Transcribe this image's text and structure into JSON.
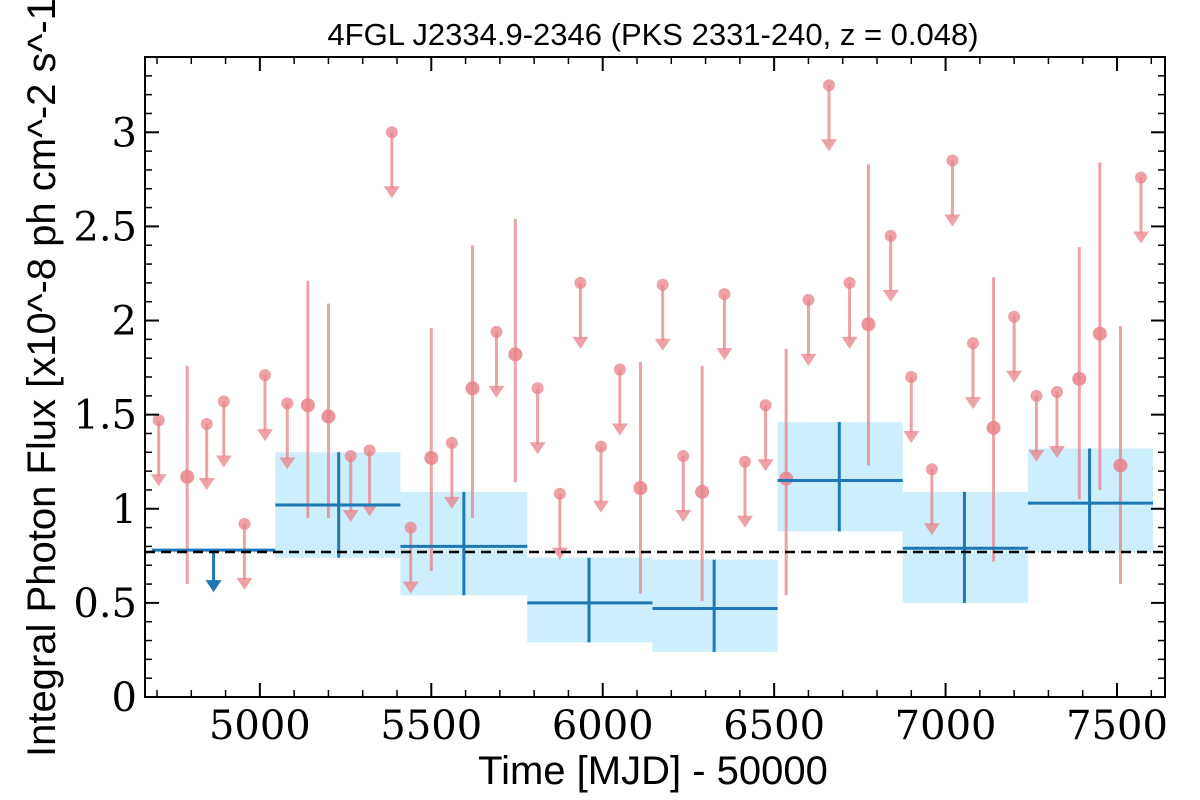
{
  "chart_data": {
    "type": "scatter",
    "title": "4FGL J2334.9-2346 (PKS 2331-240, z = 0.048)",
    "xlabel": "Time [MJD] - 50000",
    "ylabel": "Integral Photon Flux [x10^-8 ph cm^-2 s^-1]",
    "xlim": [
      4665,
      7640
    ],
    "ylim": [
      0,
      3.4
    ],
    "x_ticks": [
      5000,
      5500,
      6000,
      6500,
      7000,
      7500
    ],
    "y_ticks": [
      0,
      0.5,
      1,
      1.5,
      2,
      2.5,
      3
    ],
    "y_tick_labels": [
      "0",
      "0.5",
      "1",
      "1.5",
      "2",
      "2.5",
      "3"
    ],
    "grid": false,
    "reference_line": {
      "y": 0.77,
      "style": "dashed",
      "color": "#000000"
    },
    "series": [
      {
        "kind": "binned-fine",
        "color": "#e8838a",
        "detections": [
          {
            "x": 4788,
            "y": 1.17,
            "ylo": 0.6,
            "yhi": 1.76
          },
          {
            "x": 5140,
            "y": 1.55,
            "ylo": 0.95,
            "yhi": 2.21
          },
          {
            "x": 5200,
            "y": 1.49,
            "ylo": 0.95,
            "yhi": 2.09
          },
          {
            "x": 5500,
            "y": 1.27,
            "ylo": 0.67,
            "yhi": 1.96
          },
          {
            "x": 5620,
            "y": 1.64,
            "ylo": 0.95,
            "yhi": 2.4
          },
          {
            "x": 5745,
            "y": 1.82,
            "ylo": 1.14,
            "yhi": 2.54
          },
          {
            "x": 6110,
            "y": 1.11,
            "ylo": 0.55,
            "yhi": 1.78
          },
          {
            "x": 6290,
            "y": 1.09,
            "ylo": 0.51,
            "yhi": 1.76
          },
          {
            "x": 6535,
            "y": 1.16,
            "ylo": 0.54,
            "yhi": 1.85
          },
          {
            "x": 6775,
            "y": 1.98,
            "ylo": 1.23,
            "yhi": 2.83
          },
          {
            "x": 7140,
            "y": 1.43,
            "ylo": 0.72,
            "yhi": 2.23
          },
          {
            "x": 7390,
            "y": 1.69,
            "ylo": 1.05,
            "yhi": 2.39
          },
          {
            "x": 7450,
            "y": 1.93,
            "ylo": 1.1,
            "yhi": 2.84
          },
          {
            "x": 7510,
            "y": 1.23,
            "ylo": 0.6,
            "yhi": 1.97
          }
        ],
        "upper_limits": [
          {
            "x": 4705,
            "y": 1.47
          },
          {
            "x": 4845,
            "y": 1.45
          },
          {
            "x": 4895,
            "y": 1.57
          },
          {
            "x": 4955,
            "y": 0.92
          },
          {
            "x": 5015,
            "y": 1.71
          },
          {
            "x": 5080,
            "y": 1.56
          },
          {
            "x": 5265,
            "y": 1.28
          },
          {
            "x": 5320,
            "y": 1.31
          },
          {
            "x": 5385,
            "y": 3.0
          },
          {
            "x": 5440,
            "y": 0.9
          },
          {
            "x": 5560,
            "y": 1.35
          },
          {
            "x": 5690,
            "y": 1.94
          },
          {
            "x": 5810,
            "y": 1.64
          },
          {
            "x": 5875,
            "y": 1.08
          },
          {
            "x": 5935,
            "y": 2.2
          },
          {
            "x": 5995,
            "y": 1.33
          },
          {
            "x": 6050,
            "y": 1.74
          },
          {
            "x": 6175,
            "y": 2.19
          },
          {
            "x": 6235,
            "y": 1.28
          },
          {
            "x": 6355,
            "y": 2.14
          },
          {
            "x": 6415,
            "y": 1.25
          },
          {
            "x": 6475,
            "y": 1.55
          },
          {
            "x": 6600,
            "y": 2.11
          },
          {
            "x": 6660,
            "y": 3.25
          },
          {
            "x": 6720,
            "y": 2.2
          },
          {
            "x": 6840,
            "y": 2.45
          },
          {
            "x": 6900,
            "y": 1.7
          },
          {
            "x": 6960,
            "y": 1.21
          },
          {
            "x": 7020,
            "y": 2.85
          },
          {
            "x": 7080,
            "y": 1.88
          },
          {
            "x": 7200,
            "y": 2.02
          },
          {
            "x": 7265,
            "y": 1.6
          },
          {
            "x": 7325,
            "y": 1.62
          },
          {
            "x": 7570,
            "y": 2.76
          }
        ]
      },
      {
        "kind": "binned-coarse",
        "color": "#1f77b4",
        "band_color": "#cdeefc",
        "detections": [
          {
            "x": 5230,
            "x0": 5045,
            "x1": 5410,
            "y": 1.02,
            "ylo": 0.74,
            "yhi": 1.3
          },
          {
            "x": 5595,
            "x0": 5410,
            "x1": 5780,
            "y": 0.8,
            "ylo": 0.54,
            "yhi": 1.09
          },
          {
            "x": 5960,
            "x0": 5780,
            "x1": 6145,
            "y": 0.5,
            "ylo": 0.29,
            "yhi": 0.74
          },
          {
            "x": 6325,
            "x0": 6145,
            "x1": 6510,
            "y": 0.47,
            "ylo": 0.24,
            "yhi": 0.73
          },
          {
            "x": 6690,
            "x0": 6510,
            "x1": 6875,
            "y": 1.15,
            "ylo": 0.88,
            "yhi": 1.46
          },
          {
            "x": 7055,
            "x0": 6875,
            "x1": 7240,
            "y": 0.79,
            "ylo": 0.5,
            "yhi": 1.09
          },
          {
            "x": 7420,
            "x0": 7240,
            "x1": 7605,
            "y": 1.03,
            "ylo": 0.77,
            "yhi": 1.32
          }
        ],
        "upper_limits": [
          {
            "x": 4865,
            "x0": 4685,
            "x1": 5045,
            "y": 0.78
          }
        ]
      }
    ]
  }
}
